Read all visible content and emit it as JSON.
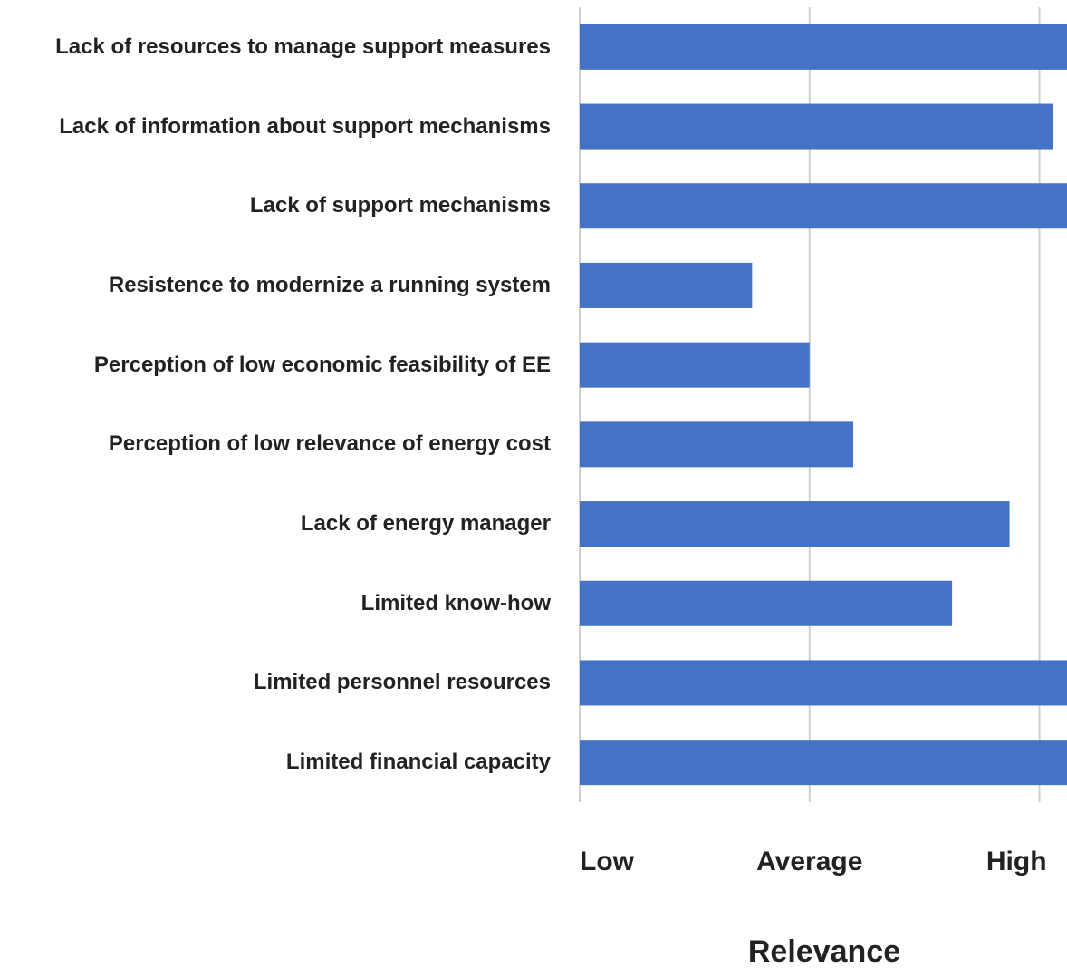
{
  "chart_data": {
    "type": "barh",
    "categories": [
      "Lack of  resources to manage support measures",
      "Lack of information about support mechanisms",
      "Lack of support mechanisms",
      "Resistence to modernize a running system",
      "Perception of low economic feasibility of EE",
      "Perception of low relevance of energy cost",
      "Lack of energy manager",
      "Limited know-how",
      "Limited personnel resources",
      "Limited financial capacity"
    ],
    "values": [
      3.2,
      3.06,
      3.2,
      1.75,
      2.0,
      2.19,
      2.87,
      2.62,
      3.2,
      3.2
    ],
    "color": "#4472c4",
    "xlabel": "Relevance",
    "xlim": [
      1,
      3.12
    ],
    "xticks": [
      {
        "value": 1,
        "label": "Low"
      },
      {
        "value": 2,
        "label": "Average"
      },
      {
        "value": 3,
        "label": "High"
      }
    ],
    "grid": true
  }
}
